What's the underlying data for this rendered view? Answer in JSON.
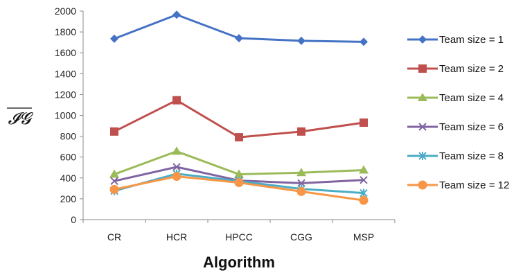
{
  "chart_data": {
    "type": "line",
    "categories": [
      "CR",
      "HCR",
      "HPCC",
      "CGG",
      "MSP"
    ],
    "xlabel": "Algorithm",
    "ylabel": "𝓘𝓖",
    "ylim": [
      0,
      2000
    ],
    "yticks": [
      0,
      200,
      400,
      600,
      800,
      1000,
      1200,
      1400,
      1600,
      1800,
      2000
    ],
    "grid": false,
    "legend_position": "right",
    "series": [
      {
        "name": "Team size = 1",
        "color": "#4472C4",
        "marker": "diamond",
        "values": [
          1735,
          1965,
          1740,
          1715,
          1705
        ]
      },
      {
        "name": "Team size = 2",
        "color": "#C0504D",
        "marker": "square",
        "values": [
          845,
          1145,
          790,
          845,
          930
        ]
      },
      {
        "name": "Team size = 4",
        "color": "#9BBB59",
        "marker": "triangle",
        "values": [
          435,
          655,
          435,
          450,
          475
        ]
      },
      {
        "name": "Team size = 6",
        "color": "#8064A2",
        "marker": "x",
        "values": [
          370,
          505,
          375,
          350,
          380
        ]
      },
      {
        "name": "Team size = 8",
        "color": "#4BACC6",
        "marker": "star",
        "values": [
          275,
          440,
          370,
          295,
          255
        ]
      },
      {
        "name": "Team size = 12",
        "color": "#F79646",
        "marker": "circle",
        "values": [
          290,
          415,
          355,
          270,
          185
        ]
      }
    ]
  }
}
